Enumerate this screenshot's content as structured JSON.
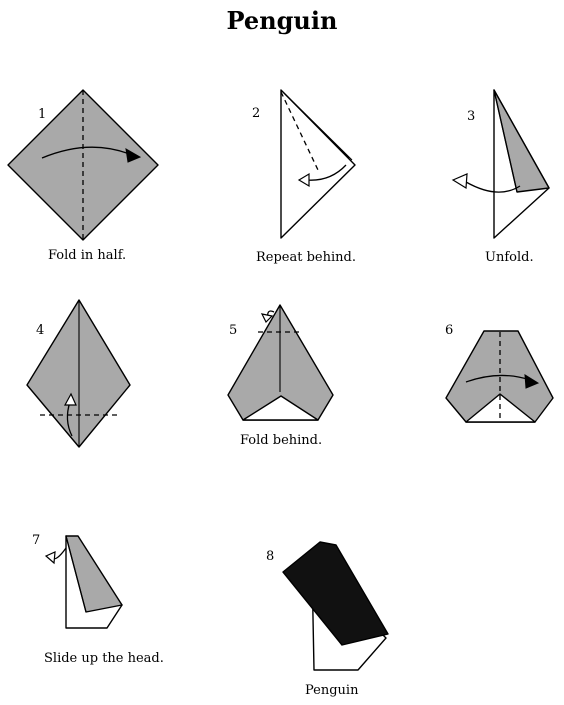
{
  "title": "Penguin",
  "steps": [
    {
      "number": "1",
      "caption": "Fold in half."
    },
    {
      "number": "2",
      "caption": "Repeat behind."
    },
    {
      "number": "3",
      "caption": "Unfold."
    },
    {
      "number": "4",
      "caption": ""
    },
    {
      "number": "5",
      "caption": "Fold behind."
    },
    {
      "number": "6",
      "caption": ""
    },
    {
      "number": "7",
      "caption": "Slide up the head."
    },
    {
      "number": "8",
      "caption": "Penguin"
    }
  ]
}
